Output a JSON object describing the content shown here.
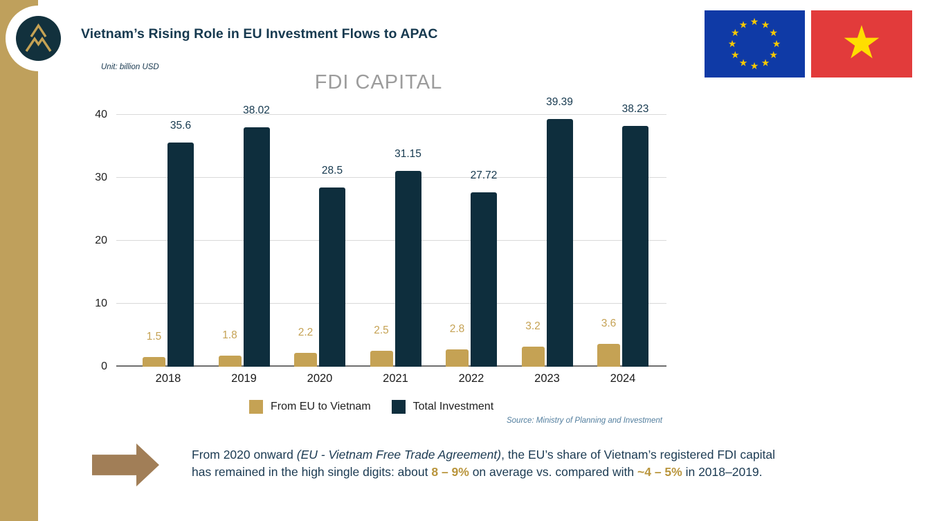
{
  "slide": {
    "title": "Vietnam’s Rising Role in EU Investment Flows to APAC",
    "unit_label": "Unit: billion USD",
    "source": "Source: Ministry of Planning and Investment"
  },
  "colors": {
    "sidebar_gold": "#BFA05C",
    "bar_gold": "#C5A254",
    "bar_navy": "#0E2E3D",
    "title_navy": "#16394F",
    "chart_title_gray": "#9C9C9C",
    "note_gold": "#B9953D",
    "arrow_brown": "#A17E57",
    "eu_flag_blue": "#0F3AA6",
    "eu_star_gold": "#F7C900",
    "vn_flag_red": "#E23B3B",
    "vn_star_yellow": "#FFDE00",
    "source_blue": "#527E9E"
  },
  "icons": {
    "logo": "mountain-monogram-logo",
    "eu_flag": "eu-flag",
    "vn_flag": "vietnam-flag",
    "arrow": "right-block-arrow"
  },
  "chart_data": {
    "type": "bar",
    "title": "FDI CAPITAL",
    "unit": "billion USD",
    "categories": [
      "2018",
      "2019",
      "2020",
      "2021",
      "2022",
      "2023",
      "2024"
    ],
    "series": [
      {
        "name": "From EU to Vietnam",
        "color": "#C5A254",
        "values": [
          1.5,
          1.8,
          2.2,
          2.5,
          2.8,
          3.2,
          3.6
        ]
      },
      {
        "name": "Total Investment",
        "color": "#0E2E3D",
        "values": [
          35.6,
          38.02,
          28.5,
          31.15,
          27.72,
          39.39,
          38.23
        ]
      }
    ],
    "ylim": [
      0,
      40
    ],
    "yticks": [
      0,
      10,
      20,
      30,
      40
    ],
    "grid": true,
    "legend_position": "bottom",
    "value_labels": true
  },
  "note": {
    "line1_pre": "From 2020 onward ",
    "line1_italic": "(EU - Vietnam Free Trade Agreement)",
    "line1_post": ", the EU’s share of Vietnam’s registered FDI capital",
    "line2_pre": "has remained in the high single digits: about ",
    "line2_gold1": "8 – 9%",
    "line2_mid": " on average vs. compared with ",
    "line2_gold2": "~4 – 5%",
    "line2_post": " in 2018–2019."
  }
}
